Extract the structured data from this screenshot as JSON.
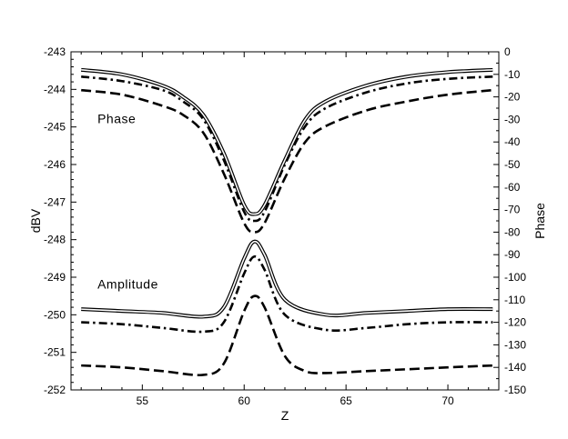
{
  "chart_data": {
    "type": "line",
    "title": "",
    "xlabel": "Z",
    "ylabel": "dBV",
    "y2label": "Phase",
    "xlim": [
      51.5,
      72.5
    ],
    "ylim": [
      -252,
      -243
    ],
    "y2lim": [
      -150,
      0
    ],
    "x_ticks": [
      55,
      60,
      65,
      70
    ],
    "y_ticks": [
      -243,
      -244,
      -245,
      -246,
      -247,
      -248,
      -249,
      -250,
      -251,
      -252
    ],
    "y2_ticks": [
      0,
      -10,
      -20,
      -30,
      -40,
      -50,
      -60,
      -70,
      -80,
      -90,
      -100,
      -110,
      -120,
      -130,
      -140,
      -150
    ],
    "grid": false,
    "annotations": [
      {
        "text": "Phase",
        "x": 52.8,
        "y": -244.9
      },
      {
        "text": "Amplitude",
        "x": 52.8,
        "y": -249.3
      }
    ],
    "series": [
      {
        "style": "double-solid",
        "axis": "left",
        "x": [
          52,
          54,
          56,
          58,
          59,
          60,
          60.5,
          61,
          62,
          64,
          66,
          68,
          70,
          72.2
        ],
        "y": [
          -249.85,
          -249.9,
          -249.95,
          -250.05,
          -249.8,
          -248.5,
          -248.05,
          -248.4,
          -249.6,
          -250.0,
          -249.95,
          -249.9,
          -249.85,
          -249.85
        ]
      },
      {
        "style": "dash-dot",
        "axis": "left",
        "x": [
          52,
          54,
          56,
          58,
          59,
          60,
          60.5,
          61,
          62,
          64,
          66,
          68,
          70,
          72.2
        ],
        "y": [
          -250.2,
          -250.25,
          -250.35,
          -250.45,
          -250.2,
          -248.9,
          -248.45,
          -248.8,
          -250.0,
          -250.4,
          -250.35,
          -250.25,
          -250.2,
          -250.2
        ]
      },
      {
        "style": "dash",
        "axis": "left",
        "x": [
          52,
          54,
          56,
          58,
          59,
          60,
          60.5,
          61,
          62,
          63,
          64,
          66,
          68,
          70,
          72.2
        ],
        "y": [
          -251.35,
          -251.4,
          -251.5,
          -251.6,
          -251.3,
          -249.9,
          -249.5,
          -249.8,
          -251.1,
          -251.5,
          -251.55,
          -251.5,
          -251.45,
          -251.4,
          -251.35
        ]
      },
      {
        "style": "double-solid",
        "axis": "right",
        "x": [
          52,
          54,
          56,
          57,
          58,
          59,
          60,
          60.5,
          61,
          62,
          63,
          64,
          66,
          68,
          70,
          72.2
        ],
        "y": [
          -8,
          -10,
          -15,
          -20,
          -28,
          -45,
          -68,
          -72,
          -68,
          -48,
          -30,
          -22,
          -15,
          -11,
          -9,
          -8
        ]
      },
      {
        "style": "dash-dot",
        "axis": "right",
        "x": [
          52,
          54,
          56,
          57,
          58,
          59,
          60,
          60.5,
          61,
          62,
          63,
          64,
          66,
          68,
          70,
          72.2
        ],
        "y": [
          -11,
          -13,
          -17,
          -22,
          -30,
          -48,
          -71,
          -75,
          -71,
          -50,
          -33,
          -25,
          -18,
          -14,
          -12,
          -11
        ]
      },
      {
        "style": "dash",
        "axis": "right",
        "x": [
          52,
          54,
          56,
          57,
          58,
          59,
          60,
          60.5,
          61,
          62,
          63,
          64,
          66,
          68,
          70,
          72.2
        ],
        "y": [
          -17,
          -19,
          -24,
          -28,
          -36,
          -54,
          -76,
          -80,
          -76,
          -56,
          -40,
          -33,
          -26,
          -22,
          -19,
          -17
        ]
      }
    ]
  }
}
